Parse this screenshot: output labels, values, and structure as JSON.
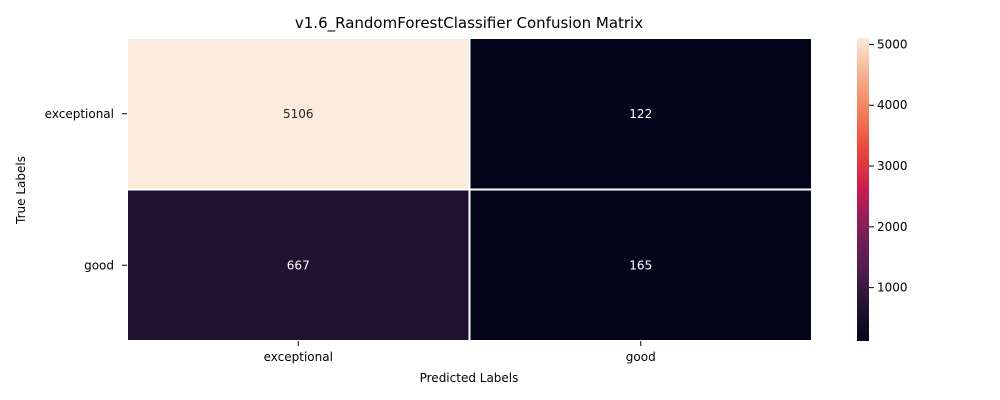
{
  "chart_data": {
    "type": "heatmap",
    "title": "v1.6_RandomForestClassifier Confusion Matrix",
    "xlabel": "Predicted Labels",
    "ylabel": "True Labels",
    "x_categories": [
      "exceptional",
      "good"
    ],
    "y_categories": [
      "exceptional",
      "good"
    ],
    "values": [
      [
        5106,
        122
      ],
      [
        667,
        165
      ]
    ],
    "colorbar": {
      "min": 122,
      "max": 5106,
      "ticks": [
        1000,
        2000,
        3000,
        4000,
        5000
      ],
      "colormap": "rocket"
    },
    "grid": false
  }
}
